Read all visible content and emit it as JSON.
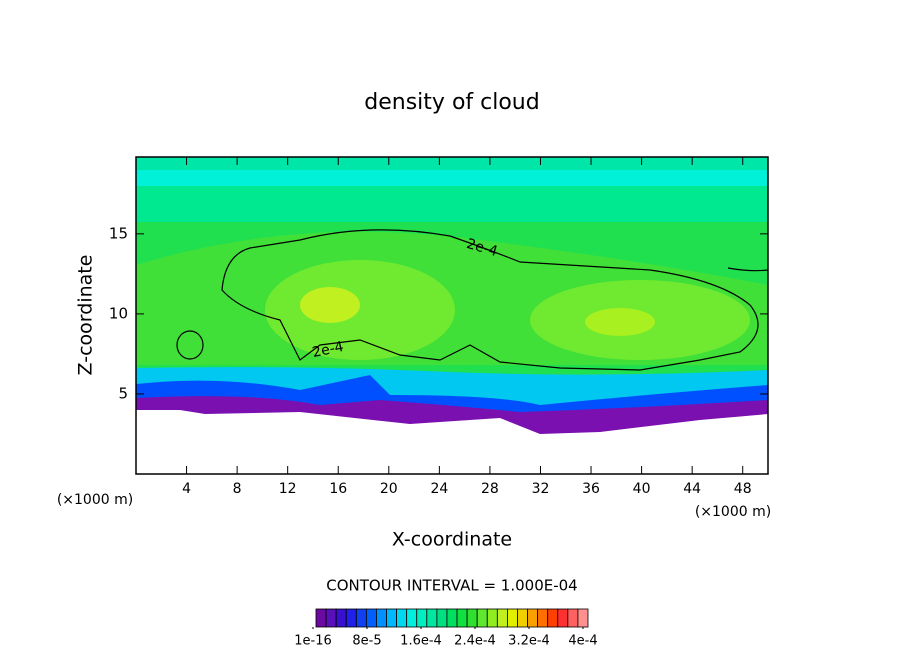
{
  "chart_data": {
    "type": "contour",
    "title": "density of cloud",
    "x_label": "X-coordinate",
    "y_label": "Z-coordinate",
    "x_unit_labels": [
      "(×1000 m)",
      "(×1000 m)"
    ],
    "contour_interval": "CONTOUR INTERVAL = 1.000E-04",
    "contour_labels": [
      "2e-4",
      "2e-4"
    ],
    "xlim": [
      0,
      50
    ],
    "xticks": [
      4,
      8,
      12,
      16,
      20,
      24,
      28,
      32,
      36,
      40,
      44,
      48
    ],
    "ylim": [
      0,
      19.8
    ],
    "yticks": [
      5,
      10,
      15
    ],
    "colorbar": {
      "lim": [
        0,
        0.0004
      ],
      "ticks": [
        {
          "value": 1e-16,
          "label": "1e-16"
        },
        {
          "value": 8e-05,
          "label": "8e-5"
        },
        {
          "value": 0.00016,
          "label": "1.6e-4"
        },
        {
          "value": 0.00024,
          "label": "2.4e-4"
        },
        {
          "value": 0.00032,
          "label": "3.2e-4"
        },
        {
          "value": 0.0004,
          "label": "4e-4"
        }
      ],
      "colors": [
        "#6a0aa0",
        "#5a10b8",
        "#3a10d0",
        "#2020e8",
        "#1040f0",
        "#0060ff",
        "#0090ff",
        "#00b8ff",
        "#00d8f0",
        "#00f0e0",
        "#00eec0",
        "#00e8a0",
        "#00e080",
        "#00e060",
        "#10e040",
        "#30e030",
        "#60e830",
        "#90ee20",
        "#c0f020",
        "#e0f000",
        "#f0d000",
        "#f8a000",
        "#ff7000",
        "#ff4000",
        "#ff3030",
        "#ff6060",
        "#ff9090"
      ]
    }
  }
}
